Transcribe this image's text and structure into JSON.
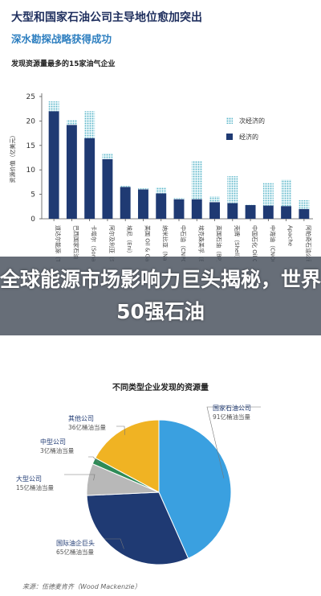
{
  "header": {
    "title": "大型和国家石油公司主导地位愈加突出",
    "subtitle": "深水勘探战略获得成功"
  },
  "overlay": {
    "text": "全球能源市场影响力巨头揭秘，世界50强石油"
  },
  "source": "来源：伍德麦肯齐（Wood Mackenzie）",
  "colors": {
    "economic": "#1f3a73",
    "sub_economic": "#7fc8d6",
    "pie_national": "#3aa0e0",
    "pie_international": "#1f3a73",
    "pie_large": "#b8b8b8",
    "pie_mid": "#2e8b57",
    "pie_other": "#f0b323"
  },
  "chart_data": [
    {
      "type": "bar",
      "title": "发现资源量最多的15家油气企业",
      "ylabel": "资源价值（亿美元）",
      "ylim": [
        0,
        25
      ],
      "yticks": [
        0,
        5,
        10,
        15,
        20,
        25
      ],
      "stacked": true,
      "legend_position": "right",
      "categories": [
        "道达尔（Total）",
        "巴西国家石油公司（Petrobras）",
        "卡塔尔（Sonatrach）",
        "阿尔及利亚（Sonatrach）",
        "埃尼（Eni）",
        "美国阿帕奇（Oil & Gas）",
        "纳米比亚（Namcor）",
        "中石油（CNPC）",
        "埃克森美孚（ExxonMobil）",
        "英国石油（BP）",
        "壳牌（Shell）",
        "中国石化（Sinopec Oil Corp）",
        "中海油（CNOOC）",
        "阿帕奇（Apache）",
        "阿帕奇石油公司（APA Corporation）"
      ],
      "tick_labels": [
        "道达尔能源（TotalEnergies）",
        "巴西国家石油（Petrobras）",
        "卡塔尔（Sonatrach）",
        "阿尔及利亚（Sonatrach）",
        "埃尼（Eni）",
        "美国 Oil & Gas",
        "纳米比亚（Namcor）",
        "中石油（CNPC）",
        "埃克森美孚（ExxonMobil）",
        "英国石油（BP）",
        "壳牌（Shell）",
        "中国石化 Oil Corp",
        "中海油（CNOOC）",
        "Apache",
        "阿帕奇石油公司（APA Corporation）"
      ],
      "series": [
        {
          "name": "经济的",
          "values": [
            22,
            19.2,
            16.5,
            12.2,
            6.5,
            6,
            5.2,
            4,
            4,
            3.4,
            3.2,
            2.8,
            2.7,
            2.6,
            2
          ]
        },
        {
          "name": "次经济的",
          "values": [
            2,
            1.0,
            5.5,
            1.2,
            0.2,
            0.2,
            1.2,
            0.2,
            7.8,
            1.2,
            5.5,
            0.1,
            4.6,
            5.4,
            1.8
          ]
        }
      ]
    },
    {
      "type": "pie",
      "title": "不同类型企业发现的资源量",
      "slices": [
        {
          "label": "国家石油公司",
          "value": 91,
          "value_label": "91亿桶油当量"
        },
        {
          "label": "国际油企巨头",
          "value": 65,
          "value_label": "65亿桶油当量"
        },
        {
          "label": "大型公司",
          "value": 15,
          "value_label": "15亿桶油当量"
        },
        {
          "label": "中型公司",
          "value": 3,
          "value_label": "3亿桶油当量"
        },
        {
          "label": "其他公司",
          "value": 36,
          "value_label": "36亿桶油当量"
        }
      ]
    }
  ]
}
